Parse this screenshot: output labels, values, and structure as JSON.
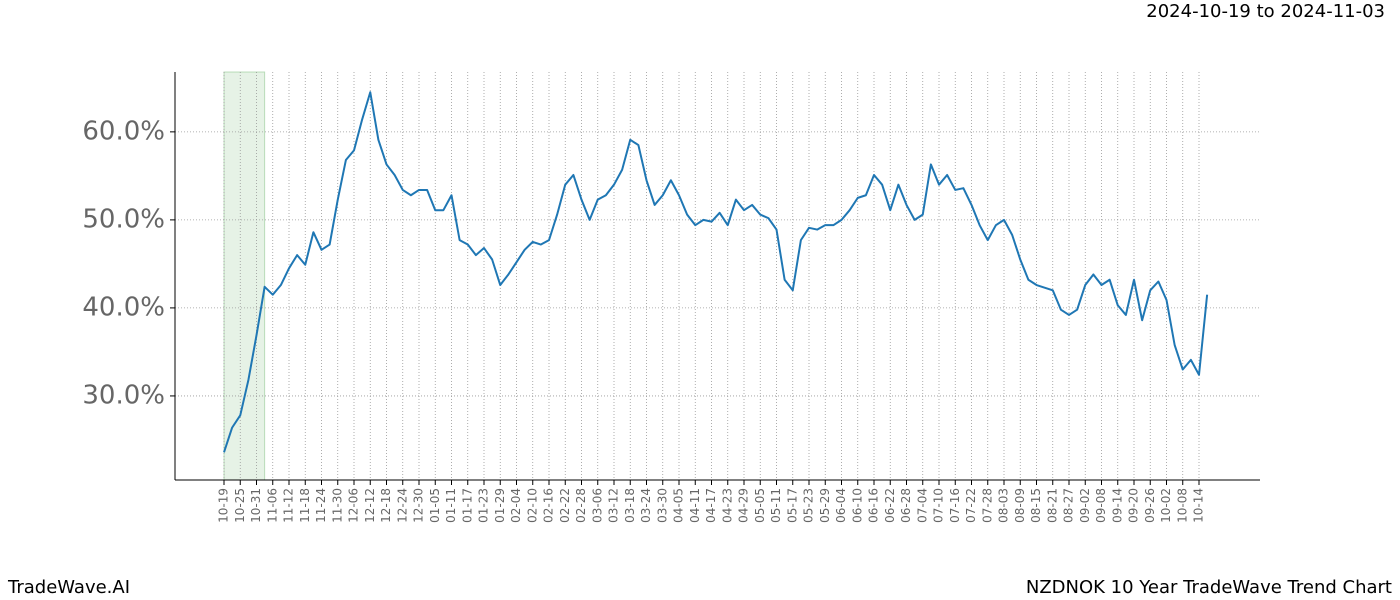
{
  "chart_data": {
    "type": "line",
    "title": "NZDNOK 10 Year TradeWave Trend Chart",
    "subtitle": "2024-10-19 to 2024-11-03",
    "brand": "TradeWave.AI",
    "categories": [
      "10-19",
      null,
      "10-25",
      null,
      "10-31",
      null,
      "11-06",
      null,
      "11-12",
      null,
      "11-18",
      null,
      "11-24",
      null,
      "11-30",
      null,
      "12-06",
      null,
      "12-12",
      null,
      "12-18",
      null,
      "12-24",
      null,
      "12-30",
      null,
      "01-05",
      null,
      "01-11",
      null,
      "01-17",
      null,
      "01-23",
      null,
      "01-29",
      null,
      "02-04",
      null,
      "02-10",
      null,
      "02-16",
      null,
      "02-22",
      null,
      "02-28",
      null,
      "03-06",
      null,
      "03-12",
      null,
      "03-18",
      null,
      "03-24",
      null,
      "03-30",
      null,
      "04-05",
      null,
      "04-11",
      null,
      "04-17",
      null,
      "04-23",
      null,
      "04-29",
      null,
      "05-05",
      null,
      "05-11",
      null,
      "05-17",
      null,
      "05-23",
      null,
      "05-29",
      null,
      "06-04",
      null,
      "06-10",
      null,
      "06-16",
      null,
      "06-22",
      null,
      "06-28",
      null,
      "07-04",
      null,
      "07-10",
      null,
      "07-16",
      null,
      "07-22",
      null,
      "07-28",
      null,
      "08-03",
      null,
      "08-09",
      null,
      "08-15",
      null,
      "08-21",
      null,
      "08-27",
      null,
      "09-02",
      null,
      "09-08",
      null,
      "09-14",
      null,
      "09-20",
      null,
      "09-26",
      null,
      "10-02",
      null,
      "10-08",
      null,
      "10-14",
      null
    ],
    "series": [
      {
        "color": "#1f77b4",
        "values": [
          23.6,
          26.4,
          27.8,
          31.8,
          36.9,
          42.4,
          41.5,
          42.6,
          44.5,
          46.0,
          44.9,
          48.6,
          46.6,
          47.2,
          52.3,
          56.8,
          57.9,
          61.4,
          64.5,
          59.1,
          56.3,
          55.1,
          53.4,
          52.8,
          53.4,
          53.4,
          51.1,
          51.1,
          52.8,
          47.7,
          47.2,
          46.0,
          46.8,
          45.5,
          42.6,
          43.8,
          45.2,
          46.6,
          47.5,
          47.2,
          47.7,
          50.6,
          54.0,
          55.1,
          52.3,
          50.0,
          52.3,
          52.8,
          54.0,
          55.7,
          59.1,
          58.5,
          54.5,
          51.7,
          52.8,
          54.5,
          52.8,
          50.6,
          49.4,
          50.0,
          49.8,
          50.8,
          49.4,
          52.3,
          51.1,
          51.7,
          50.6,
          50.2,
          48.9,
          43.2,
          42.0,
          47.7,
          49.1,
          48.9,
          49.4,
          49.4,
          50.0,
          51.1,
          52.5,
          52.8,
          55.1,
          54.0,
          51.1,
          54.0,
          51.7,
          50.0,
          50.6,
          56.3,
          54.0,
          55.1,
          53.4,
          53.6,
          51.7,
          49.4,
          47.7,
          49.4,
          50.0,
          48.3,
          45.5,
          43.2,
          42.6,
          42.3,
          42.0,
          39.8,
          39.2,
          39.8,
          42.6,
          43.8,
          42.6,
          43.2,
          40.3,
          39.2,
          43.2,
          38.6,
          42.0,
          43.0,
          40.9,
          35.8,
          33.0,
          34.1,
          32.4,
          41.5
        ]
      }
    ],
    "highlight": [
      0,
      5
    ],
    "highlight_color": "#e6f2e6",
    "ylim": [
      20.45,
      66.8
    ],
    "yticks": [
      {
        "value": 30,
        "label": "30.0%"
      },
      {
        "value": 40,
        "label": "40.0%"
      },
      {
        "value": 50,
        "label": "50.0%"
      },
      {
        "value": 60,
        "label": "60.0%"
      }
    ],
    "grid": true
  }
}
